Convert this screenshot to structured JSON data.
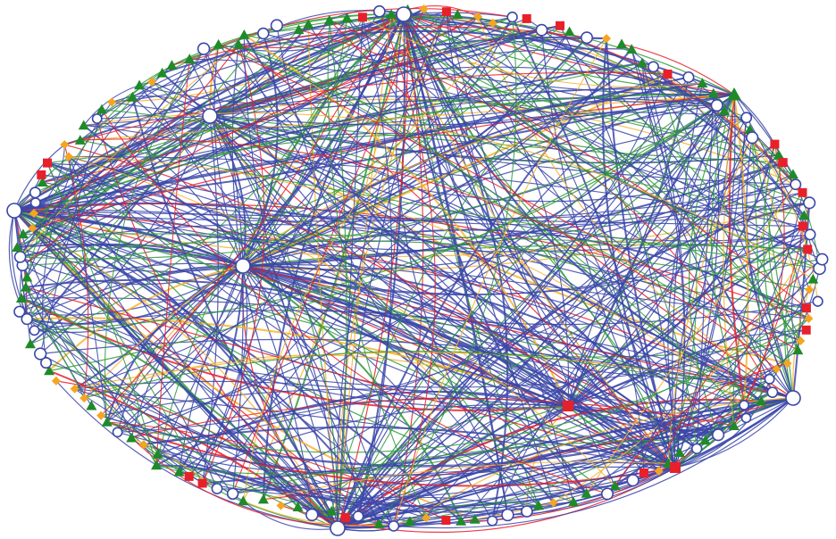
{
  "graph": {
    "layout": "ellipse",
    "background": "#ffffff",
    "node_types": [
      {
        "key": "circle",
        "shape": "circle",
        "color": "#3b47a8"
      },
      {
        "key": "triangle",
        "shape": "triangle",
        "color": "#1e8a28"
      },
      {
        "key": "diamond",
        "shape": "diamond",
        "color": "#f5a51f"
      },
      {
        "key": "square",
        "shape": "square",
        "color": "#e8202a"
      }
    ],
    "edge_colors": {
      "circle": "#3b47a8",
      "triangle": "#2f9a3a",
      "diamond": "#f7b32b",
      "square": "#e8202a"
    },
    "node_count": 150,
    "edge_count": 620,
    "hubs": [
      {
        "id": "hub-top-left",
        "type": "circle",
        "degree": 40
      },
      {
        "id": "hub-top-center",
        "type": "circle",
        "degree": 55
      },
      {
        "id": "hub-left",
        "type": "circle",
        "degree": 50
      },
      {
        "id": "hub-center",
        "type": "circle",
        "degree": 70
      },
      {
        "id": "hub-right-center",
        "type": "square",
        "degree": 45
      },
      {
        "id": "hub-bottom-center",
        "type": "circle",
        "degree": 60
      },
      {
        "id": "hub-bottom-right",
        "type": "square",
        "degree": 45
      },
      {
        "id": "hub-right",
        "type": "circle",
        "degree": 40
      },
      {
        "id": "hub-top-right",
        "type": "triangle",
        "degree": 35
      }
    ]
  }
}
